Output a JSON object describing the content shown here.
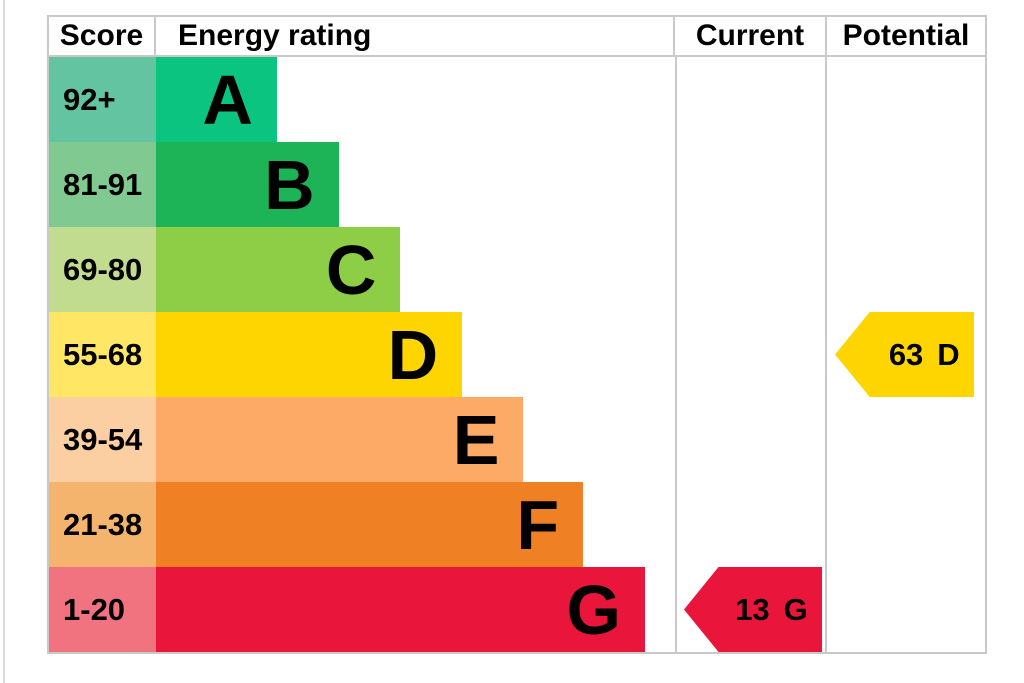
{
  "header": {
    "score": "Score",
    "energy_rating": "Energy rating",
    "current": "Current",
    "potential": "Potential"
  },
  "chart_data": {
    "type": "bar",
    "title": "EPC energy efficiency rating chart",
    "columns": [
      "Score",
      "Energy rating",
      "Current",
      "Potential"
    ],
    "bands": [
      {
        "letter": "A",
        "score": "92+",
        "bar_color": "#0bc47f",
        "score_color": "#62c4a0",
        "width_pct": 23.3
      },
      {
        "letter": "B",
        "score": "81-91",
        "bar_color": "#1db458",
        "score_color": "#80ca92",
        "width_pct": 35.2
      },
      {
        "letter": "C",
        "score": "69-80",
        "bar_color": "#8dce46",
        "score_color": "#c1dc8e",
        "width_pct": 47.1
      },
      {
        "letter": "D",
        "score": "55-68",
        "bar_color": "#ffd500",
        "score_color": "#ffe665",
        "width_pct": 59.0
      },
      {
        "letter": "E",
        "score": "39-54",
        "bar_color": "#fcaa65",
        "score_color": "#fccfa2",
        "width_pct": 70.8
      },
      {
        "letter": "F",
        "score": "21-38",
        "bar_color": "#ef8023",
        "score_color": "#f5b46e",
        "width_pct": 82.3
      },
      {
        "letter": "G",
        "score": "1-20",
        "bar_color": "#e9153b",
        "score_color": "#f0737f",
        "width_pct": 94.2
      }
    ],
    "current": {
      "value": "13",
      "letter": "G",
      "row": 7,
      "color": "#e9153b"
    },
    "potential": {
      "value": "63",
      "letter": "D",
      "row": 4,
      "color": "#ffd500"
    },
    "grid_color": "#c9c9c9",
    "legend_position": "none",
    "grid": true
  }
}
